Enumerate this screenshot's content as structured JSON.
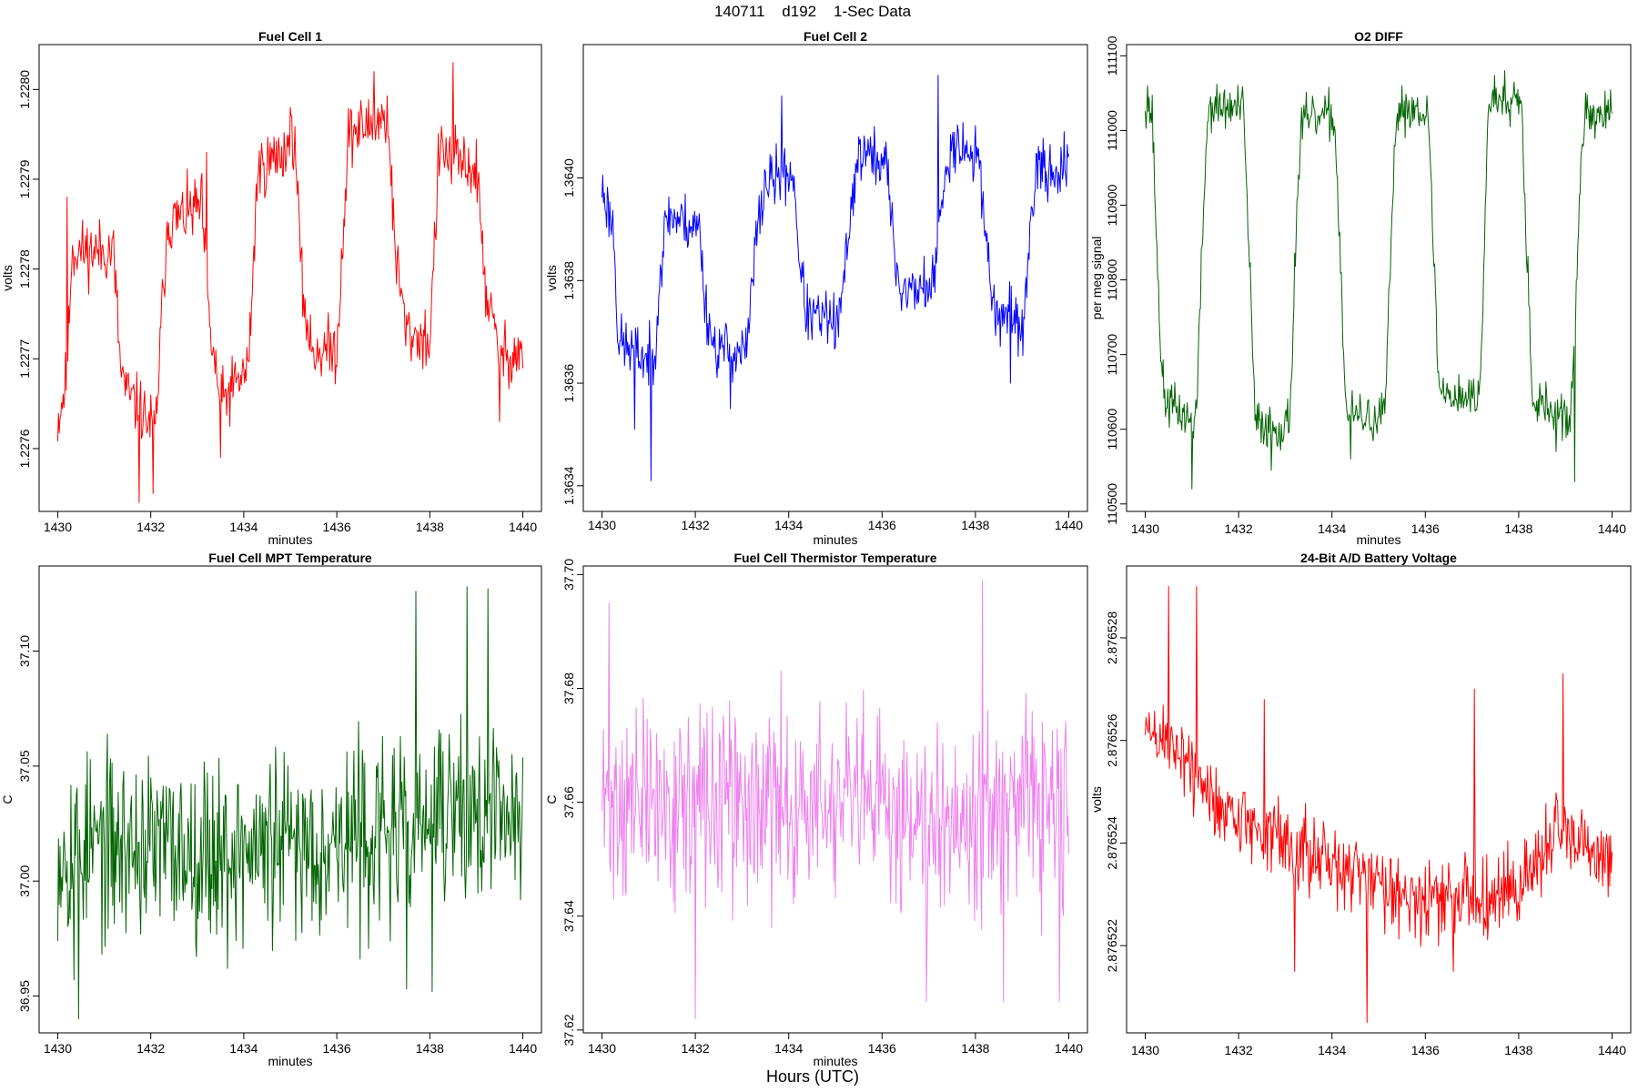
{
  "figure": {
    "suptitle": "140711    d192    1-Sec Data",
    "xlabel": "Hours (UTC)"
  },
  "chart_data": [
    {
      "type": "line",
      "title": "Fuel Cell 1",
      "xlabel": "minutes",
      "ylabel": "volts",
      "color": "#ff0000",
      "xlim": [
        1429.6,
        1440.4
      ],
      "ylim": [
        1.22753,
        1.22805
      ],
      "xticks": [
        1430,
        1432,
        1434,
        1436,
        1438,
        1440
      ],
      "xtick_labels": [
        "1430",
        "1432",
        "1434",
        "1436",
        "1438",
        "1440"
      ],
      "yticks": [
        1.2276,
        1.2277,
        1.2278,
        1.2279,
        1.228
      ],
      "ytick_labels": [
        "1.2276",
        "1.2277",
        "1.2278",
        "1.2279",
        "1.2280"
      ],
      "series": [
        {
          "name": "Fuel Cell 1",
          "x_start": 1430,
          "x_end": 1440,
          "anchors": [
            [
              1430.0,
              1.22763
            ],
            [
              1430.2,
              1.22768
            ],
            [
              1430.3,
              1.22782
            ],
            [
              1431.2,
              1.22782
            ],
            [
              1431.35,
              1.22769
            ],
            [
              1431.5,
              1.22766
            ],
            [
              1432.1,
              1.22762
            ],
            [
              1432.35,
              1.22785
            ],
            [
              1433.1,
              1.22787
            ],
            [
              1433.25,
              1.22774
            ],
            [
              1433.5,
              1.22765
            ],
            [
              1434.1,
              1.22769
            ],
            [
              1434.3,
              1.22791
            ],
            [
              1435.1,
              1.22794
            ],
            [
              1435.25,
              1.22778
            ],
            [
              1435.45,
              1.22771
            ],
            [
              1436.0,
              1.22771
            ],
            [
              1436.25,
              1.22795
            ],
            [
              1437.1,
              1.22797
            ],
            [
              1437.25,
              1.22782
            ],
            [
              1437.5,
              1.22773
            ],
            [
              1438.0,
              1.22772
            ],
            [
              1438.2,
              1.22793
            ],
            [
              1439.0,
              1.22791
            ],
            [
              1439.2,
              1.22778
            ],
            [
              1439.5,
              1.2277
            ],
            [
              1440.0,
              1.22771
            ]
          ],
          "noise": 2.5e-05,
          "spikes": [
            [
              1430.2,
              1.22788
            ],
            [
              1431.75,
              1.22754
            ],
            [
              1432.05,
              1.22755
            ],
            [
              1433.2,
              1.22793
            ],
            [
              1433.5,
              1.22759
            ],
            [
              1435.0,
              1.22798
            ],
            [
              1436.8,
              1.22802
            ],
            [
              1438.5,
              1.22803
            ],
            [
              1439.5,
              1.22763
            ]
          ],
          "seed": 11
        }
      ]
    },
    {
      "type": "line",
      "title": "Fuel Cell 2",
      "xlabel": "minutes",
      "ylabel": "volts",
      "color": "#0000ff",
      "xlim": [
        1429.6,
        1440.4
      ],
      "ylim": [
        1.36335,
        1.36426
      ],
      "xticks": [
        1430,
        1432,
        1434,
        1436,
        1438,
        1440
      ],
      "xtick_labels": [
        "1430",
        "1432",
        "1434",
        "1436",
        "1438",
        "1440"
      ],
      "yticks": [
        1.3634,
        1.3636,
        1.3638,
        1.364
      ],
      "ytick_labels": [
        "1.3634",
        "1.3636",
        "1.3638",
        "1.3640"
      ],
      "series": [
        {
          "name": "Fuel Cell 2",
          "x_start": 1430,
          "x_end": 1440,
          "anchors": [
            [
              1430.0,
              1.36398
            ],
            [
              1430.25,
              1.3639
            ],
            [
              1430.35,
              1.36368
            ],
            [
              1431.1,
              1.36364
            ],
            [
              1431.25,
              1.36382
            ],
            [
              1431.4,
              1.36393
            ],
            [
              1432.1,
              1.3639
            ],
            [
              1432.2,
              1.36376
            ],
            [
              1432.4,
              1.36367
            ],
            [
              1433.1,
              1.36366
            ],
            [
              1433.3,
              1.36388
            ],
            [
              1433.5,
              1.36399
            ],
            [
              1434.1,
              1.36401
            ],
            [
              1434.25,
              1.36382
            ],
            [
              1434.4,
              1.36373
            ],
            [
              1435.1,
              1.36372
            ],
            [
              1435.3,
              1.36392
            ],
            [
              1435.5,
              1.36405
            ],
            [
              1436.1,
              1.36403
            ],
            [
              1436.25,
              1.36386
            ],
            [
              1436.4,
              1.36378
            ],
            [
              1437.1,
              1.36379
            ],
            [
              1437.3,
              1.36396
            ],
            [
              1437.5,
              1.36408
            ],
            [
              1438.1,
              1.36403
            ],
            [
              1438.25,
              1.36386
            ],
            [
              1438.4,
              1.36374
            ],
            [
              1439.05,
              1.36371
            ],
            [
              1439.2,
              1.36395
            ],
            [
              1439.4,
              1.36402
            ],
            [
              1440.0,
              1.36401
            ]
          ],
          "noise": 4e-05,
          "spikes": [
            [
              1431.05,
              1.36341
            ],
            [
              1430.7,
              1.36351
            ],
            [
              1432.75,
              1.36355
            ],
            [
              1433.85,
              1.36416
            ],
            [
              1435.0,
              1.36367
            ],
            [
              1437.2,
              1.3642
            ],
            [
              1438.75,
              1.3636
            ],
            [
              1439.9,
              1.36409
            ]
          ],
          "seed": 23
        }
      ]
    },
    {
      "type": "line",
      "title": "O2 DIFF",
      "xlabel": "minutes",
      "ylabel": "per meg signal",
      "color": "#006400",
      "xlim": [
        1429.6,
        1440.4
      ],
      "ylim": [
        110490,
        111115
      ],
      "xticks": [
        1430,
        1432,
        1434,
        1436,
        1438,
        1440
      ],
      "xtick_labels": [
        "1430",
        "1432",
        "1434",
        "1436",
        "1438",
        "1440"
      ],
      "yticks": [
        110500,
        110600,
        110700,
        110800,
        110900,
        111000,
        111100
      ],
      "ytick_labels": [
        "110500",
        "110600",
        "110700",
        "110800",
        "110900",
        "111000",
        "111100"
      ],
      "series": [
        {
          "name": "O2 DIFF",
          "x_start": 1430,
          "x_end": 1440,
          "anchors": [
            [
              1430.0,
              111040
            ],
            [
              1430.15,
              111020
            ],
            [
              1430.3,
              110750
            ],
            [
              1430.4,
              110640
            ],
            [
              1431.0,
              110610
            ],
            [
              1431.1,
              110625
            ],
            [
              1431.25,
              110900
            ],
            [
              1431.35,
              111030
            ],
            [
              1432.1,
              111030
            ],
            [
              1432.25,
              110800
            ],
            [
              1432.35,
              110610
            ],
            [
              1433.0,
              110600
            ],
            [
              1433.1,
              110620
            ],
            [
              1433.25,
              110900
            ],
            [
              1433.35,
              111010
            ],
            [
              1434.05,
              111020
            ],
            [
              1434.2,
              110800
            ],
            [
              1434.3,
              110620
            ],
            [
              1435.05,
              110610
            ],
            [
              1435.15,
              110640
            ],
            [
              1435.3,
              110900
            ],
            [
              1435.4,
              111030
            ],
            [
              1436.05,
              111030
            ],
            [
              1436.2,
              110800
            ],
            [
              1436.3,
              110650
            ],
            [
              1437.15,
              110640
            ],
            [
              1437.25,
              110800
            ],
            [
              1437.35,
              111040
            ],
            [
              1438.05,
              111050
            ],
            [
              1438.2,
              110800
            ],
            [
              1438.3,
              110640
            ],
            [
              1439.05,
              110610
            ],
            [
              1439.15,
              110640
            ],
            [
              1439.3,
              110900
            ],
            [
              1439.4,
              111020
            ],
            [
              1440.0,
              111020
            ]
          ],
          "noise": 22,
          "spikes": [
            [
              1431.0,
              110520
            ],
            [
              1432.7,
              110545
            ],
            [
              1434.4,
              110560
            ],
            [
              1437.7,
              111080
            ],
            [
              1439.2,
              110530
            ],
            [
              1438.8,
              110570
            ],
            [
              1430.05,
              111060
            ]
          ],
          "seed": 37
        }
      ]
    },
    {
      "type": "line",
      "title": "Fuel Cell MPT Temperature",
      "xlabel": "minutes",
      "ylabel": "C",
      "color": "#006400",
      "xlim": [
        1429.6,
        1440.4
      ],
      "ylim": [
        36.934,
        37.137
      ],
      "xticks": [
        1430,
        1432,
        1434,
        1436,
        1438,
        1440
      ],
      "xtick_labels": [
        "1430",
        "1432",
        "1434",
        "1436",
        "1438",
        "1440"
      ],
      "yticks": [
        36.95,
        37.0,
        37.05,
        37.1
      ],
      "ytick_labels": [
        "36.95",
        "37.00",
        "37.05",
        "37.10"
      ],
      "series": [
        {
          "name": "Fuel Cell MPT Temperature",
          "x_start": 1430,
          "x_end": 1440,
          "anchors": [
            [
              1430.0,
              37.015
            ],
            [
              1432.0,
              37.015
            ],
            [
              1434.0,
              37.013
            ],
            [
              1436.0,
              37.018
            ],
            [
              1437.5,
              37.022
            ],
            [
              1438.5,
              37.03
            ],
            [
              1440.0,
              37.025
            ]
          ],
          "noise": 0.028,
          "spikes": [
            [
              1430.45,
              36.94
            ],
            [
              1430.35,
              36.957
            ],
            [
              1437.7,
              37.126
            ],
            [
              1439.25,
              37.127
            ],
            [
              1438.8,
              37.128
            ],
            [
              1433.65,
              36.962
            ],
            [
              1437.5,
              36.953
            ],
            [
              1438.05,
              36.952
            ]
          ],
          "seed": 53
        }
      ]
    },
    {
      "type": "line",
      "title": "Fuel Cell Thermistor Temperature",
      "xlabel": "minutes",
      "ylabel": "C",
      "color": "#ee82ee",
      "xlim": [
        1429.6,
        1440.4
      ],
      "ylim": [
        37.6195,
        37.7015
      ],
      "xticks": [
        1430,
        1432,
        1434,
        1436,
        1438,
        1440
      ],
      "xtick_labels": [
        "1430",
        "1432",
        "1434",
        "1436",
        "1438",
        "1440"
      ],
      "yticks": [
        37.62,
        37.64,
        37.66,
        37.68,
        37.7
      ],
      "ytick_labels": [
        "37.62",
        "37.64",
        "37.66",
        "37.68",
        "37.70"
      ],
      "series": [
        {
          "name": "Fuel Cell Thermistor Temperature",
          "x_start": 1430,
          "x_end": 1440,
          "anchors": [
            [
              1430.0,
              37.66
            ],
            [
              1435.0,
              37.659
            ],
            [
              1440.0,
              37.658
            ]
          ],
          "noise": 0.012,
          "spikes": [
            [
              1432.0,
              37.622
            ],
            [
              1438.15,
              37.699
            ],
            [
              1430.15,
              37.695
            ],
            [
              1438.6,
              37.625
            ],
            [
              1439.8,
              37.625
            ],
            [
              1436.95,
              37.625
            ]
          ],
          "seed": 71
        }
      ]
    },
    {
      "type": "line",
      "title": "24-Bit A/D Battery Voltage",
      "xlabel": "",
      "ylabel": "volts",
      "color": "#ff0000",
      "xlim": [
        1429.6,
        1440.4
      ],
      "ylim": [
        2.8765203,
        2.8765294
      ],
      "xticks": [
        1430,
        1432,
        1434,
        1436,
        1438,
        1440
      ],
      "xtick_labels": [
        "1430",
        "1432",
        "1434",
        "1436",
        "1438",
        "1440"
      ],
      "yticks": [
        2.876522,
        2.876524,
        2.876526,
        2.876528
      ],
      "ytick_labels": [
        "2.876522",
        "2.876524",
        "2.876526",
        "2.876528"
      ],
      "series": [
        {
          "name": "24-Bit A/D Battery Voltage",
          "x_start": 1430,
          "x_end": 1440,
          "anchors": [
            [
              1430.0,
              2.8765262
            ],
            [
              1430.8,
              2.8765258
            ],
            [
              1431.2,
              2.876525
            ],
            [
              1432.0,
              2.8765245
            ],
            [
              1433.0,
              2.876524
            ],
            [
              1434.0,
              2.8765235
            ],
            [
              1435.0,
              2.8765233
            ],
            [
              1436.0,
              2.8765228
            ],
            [
              1437.0,
              2.876523
            ],
            [
              1438.0,
              2.8765231
            ],
            [
              1438.8,
              2.8765242
            ],
            [
              1440.0,
              2.8765235
            ]
          ],
          "noise": 5.5e-07,
          "spikes": [
            [
              1430.5,
              2.876529
            ],
            [
              1431.1,
              2.876529
            ],
            [
              1434.75,
              2.8765205
            ],
            [
              1433.2,
              2.8765215
            ],
            [
              1437.05,
              2.876527
            ],
            [
              1438.95,
              2.8765273
            ],
            [
              1432.55,
              2.8765268
            ],
            [
              1436.6,
              2.8765215
            ]
          ],
          "seed": 89
        }
      ]
    }
  ]
}
